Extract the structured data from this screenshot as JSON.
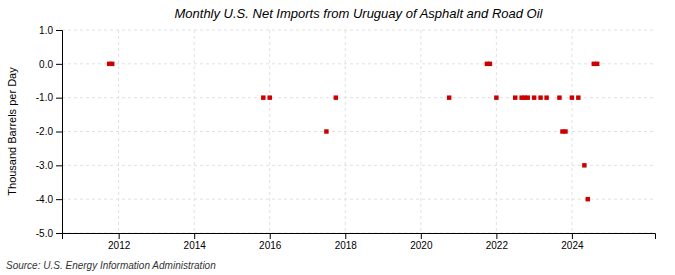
{
  "chart_data": {
    "type": "scatter",
    "title": "Monthly U.S. Net Imports from Uruguay of Asphalt and Road Oil",
    "ylabel": "Thousand Barrels per Day",
    "source": "Source: U.S. Energy Information Administration",
    "color": "#cc0000",
    "marker": "square",
    "grid": true,
    "xlim": [
      2010.5,
      2026.2
    ],
    "xticks": [
      2012,
      2014,
      2016,
      2018,
      2020,
      2022,
      2024
    ],
    "ylim": [
      -5.0,
      1.0
    ],
    "yticks": [
      {
        "value": 1.0,
        "label": "1.0"
      },
      {
        "value": 0.0,
        "label": "0.0"
      },
      {
        "value": -1.0,
        "label": "-1.0"
      },
      {
        "value": -2.0,
        "label": "-2.0"
      },
      {
        "value": -3.0,
        "label": "-3.0"
      },
      {
        "value": -4.0,
        "label": "-4.0"
      },
      {
        "value": -5.0,
        "label": "-5.0"
      }
    ],
    "x": [
      2011.75,
      2011.83,
      2015.83,
      2016.0,
      2017.5,
      2017.75,
      2020.75,
      2021.75,
      2021.83,
      2022.0,
      2022.5,
      2022.67,
      2022.75,
      2022.83,
      2023.0,
      2023.17,
      2023.33,
      2023.67,
      2023.75,
      2023.83,
      2024.0,
      2024.17,
      2024.33,
      2024.42,
      2024.58,
      2024.67
    ],
    "values": [
      0.0,
      0.0,
      -1.0,
      -1.0,
      -2.0,
      -1.0,
      -1.0,
      0.0,
      0.0,
      -1.0,
      -1.0,
      -1.0,
      -1.0,
      -1.0,
      -1.0,
      -1.0,
      -1.0,
      -1.0,
      -2.0,
      -2.0,
      -1.0,
      -1.0,
      -3.0,
      -4.0,
      0.0,
      0.0
    ]
  }
}
